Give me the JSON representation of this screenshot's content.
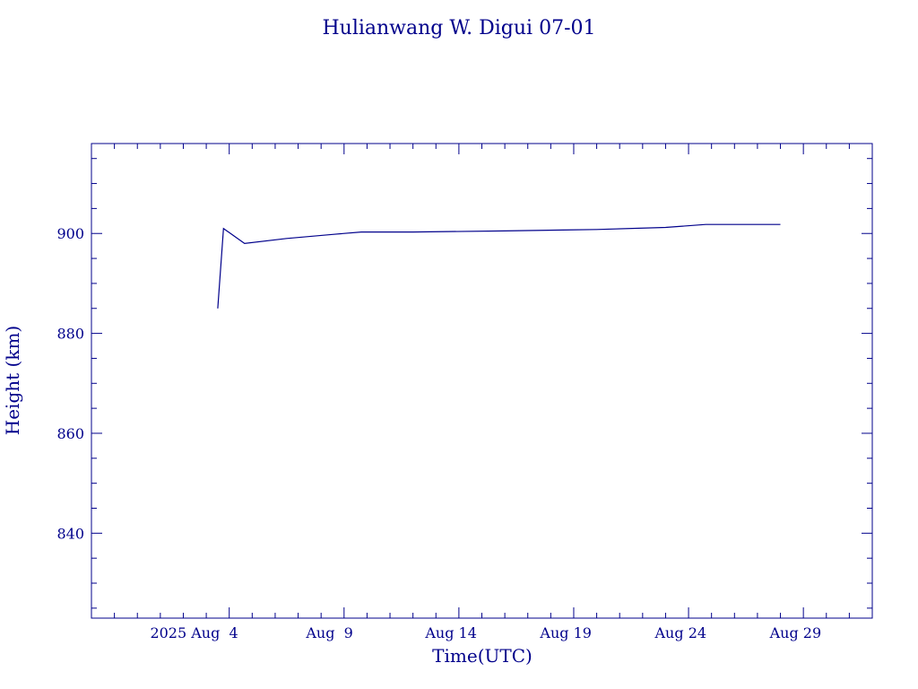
{
  "colors": {
    "ink": "#00008b",
    "background": "#ffffff"
  },
  "chart_data": {
    "type": "line",
    "title": "Hulianwang W. Digui 07-01",
    "xlabel": "Time(UTC)",
    "ylabel": "Height (km)",
    "x_axis_type": "date",
    "xlim": [
      "2025-07-29",
      "2025-09-01"
    ],
    "ylim": [
      823,
      918
    ],
    "yticks": [
      840,
      860,
      880,
      900
    ],
    "xticks": [
      {
        "date": "2025-08-04",
        "label": "2025 Aug  4"
      },
      {
        "date": "2025-08-09",
        "label": "Aug  9"
      },
      {
        "date": "2025-08-14",
        "label": "Aug 14"
      },
      {
        "date": "2025-08-19",
        "label": "Aug 19"
      },
      {
        "date": "2025-08-24",
        "label": "Aug 24"
      },
      {
        "date": "2025-08-29",
        "label": "Aug 29"
      }
    ],
    "grid": false,
    "series": [
      {
        "points": [
          {
            "x": "2025-08-03T12:00",
            "y": 885
          },
          {
            "x": "2025-08-03T18:00",
            "y": 901
          },
          {
            "x": "2025-08-04T16:00",
            "y": 898
          },
          {
            "x": "2025-08-06T12:00",
            "y": 899
          },
          {
            "x": "2025-08-08T12:00",
            "y": 899.8
          },
          {
            "x": "2025-08-09T18:00",
            "y": 900.3
          },
          {
            "x": "2025-08-12T00:00",
            "y": 900.3
          },
          {
            "x": "2025-08-16T00:00",
            "y": 900.5
          },
          {
            "x": "2025-08-20T00:00",
            "y": 900.8
          },
          {
            "x": "2025-08-23T00:00",
            "y": 901.2
          },
          {
            "x": "2025-08-24T18:00",
            "y": 901.8
          },
          {
            "x": "2025-08-27T18:00",
            "y": 901.8
          },
          {
            "x": "2025-08-28T00:00",
            "y": 901.8
          }
        ]
      }
    ]
  }
}
